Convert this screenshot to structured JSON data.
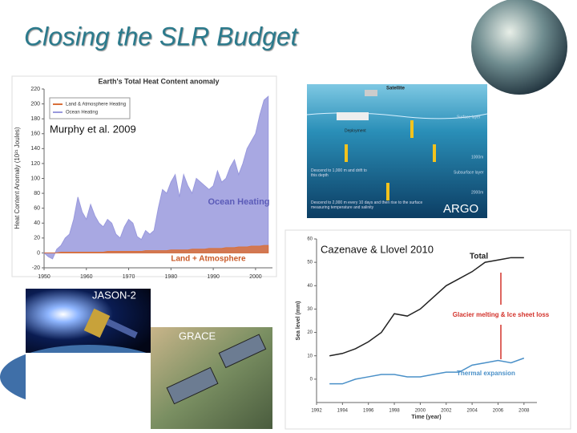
{
  "title": "Closing the SLR Budget",
  "images": [
    {
      "label": "ARGO",
      "texts": [
        "Satellite",
        "Surface layer",
        "Deployment",
        "1000m",
        "Subsurface layer",
        "2000m",
        "Descend to 1,000 m and drift to this depth",
        "Descend to 2,000 m every 10 days and then rise to the surface measuring temperature and salinity"
      ]
    },
    {
      "label": "JASON-2"
    },
    {
      "label": "GRACE"
    }
  ],
  "chart_data": [
    {
      "type": "area",
      "title": "Earth's Total Heat Content anomaly",
      "source": "Murphy et al. 2009",
      "ylabel": "Heat Content Anomaly (10²¹ Joules)",
      "x": [
        1950,
        1951,
        1952,
        1953,
        1954,
        1955,
        1956,
        1957,
        1958,
        1959,
        1960,
        1961,
        1962,
        1963,
        1964,
        1965,
        1966,
        1967,
        1968,
        1969,
        1970,
        1971,
        1972,
        1973,
        1974,
        1975,
        1976,
        1977,
        1978,
        1979,
        1980,
        1981,
        1982,
        1983,
        1984,
        1985,
        1986,
        1987,
        1988,
        1989,
        1990,
        1991,
        1992,
        1993,
        1994,
        1995,
        1996,
        1997,
        1998,
        1999,
        2000,
        2001,
        2002,
        2003
      ],
      "series": [
        {
          "name": "Land & Atmosphere Heating",
          "color": "#d9703a",
          "values": [
            0,
            0,
            0,
            0,
            1,
            1,
            1,
            1,
            1,
            1,
            1,
            1,
            1,
            1,
            1,
            2,
            2,
            2,
            2,
            2,
            2,
            2,
            2,
            2,
            3,
            3,
            3,
            3,
            3,
            3,
            4,
            4,
            4,
            4,
            4,
            5,
            5,
            5,
            5,
            6,
            6,
            6,
            6,
            7,
            7,
            7,
            8,
            8,
            8,
            9,
            9,
            9,
            10,
            10
          ]
        },
        {
          "name": "Ocean Heating",
          "color": "#9999dd",
          "values": [
            0,
            -5,
            -8,
            5,
            10,
            20,
            25,
            45,
            75,
            55,
            45,
            65,
            50,
            40,
            35,
            45,
            40,
            25,
            20,
            35,
            45,
            40,
            22,
            18,
            30,
            25,
            30,
            60,
            85,
            80,
            95,
            105,
            75,
            105,
            90,
            80,
            100,
            95,
            90,
            85,
            90,
            110,
            95,
            100,
            115,
            125,
            105,
            120,
            140,
            150,
            160,
            185,
            205,
            210
          ]
        }
      ],
      "annotations": [
        "Ocean Heating",
        "Land + Atmosphere"
      ],
      "xlim": [
        1950,
        2004
      ],
      "xticks": [
        1950,
        1960,
        1970,
        1980,
        1990,
        2000
      ],
      "ylim": [
        -20,
        220
      ],
      "yticks": [
        -20,
        0,
        20,
        40,
        60,
        80,
        100,
        120,
        140,
        160,
        180,
        200,
        220
      ],
      "legend": "upper left"
    },
    {
      "type": "line",
      "source": "Cazenave & Llovel 2010",
      "xlabel": "Time (year)",
      "ylabel": "Sea level (mm)",
      "x": [
        1993,
        1994,
        1995,
        1996,
        1997,
        1998,
        1999,
        2000,
        2001,
        2002,
        2003,
        2004,
        2005,
        2006,
        2007,
        2008
      ],
      "series": [
        {
          "name": "Total",
          "color": "#222222",
          "values": [
            10,
            11,
            13,
            16,
            20,
            28,
            27,
            30,
            35,
            40,
            43,
            46,
            50,
            51,
            52,
            52
          ]
        },
        {
          "name": "Thermal expansion",
          "color": "#4a90c8",
          "values": [
            -2,
            -2,
            0,
            1,
            2,
            2,
            1,
            1,
            2,
            3,
            3,
            6,
            7,
            8,
            7,
            9
          ]
        }
      ],
      "annotations": [
        "Glacier melting & Ice sheet loss"
      ],
      "xlim": [
        1992,
        2009
      ],
      "xticks": [
        1992,
        1994,
        1996,
        1998,
        2000,
        2002,
        2004,
        2006,
        2008
      ],
      "ylim": [
        -10,
        60
      ],
      "yticks": [
        0,
        10,
        20,
        30,
        40,
        50,
        60
      ]
    }
  ]
}
